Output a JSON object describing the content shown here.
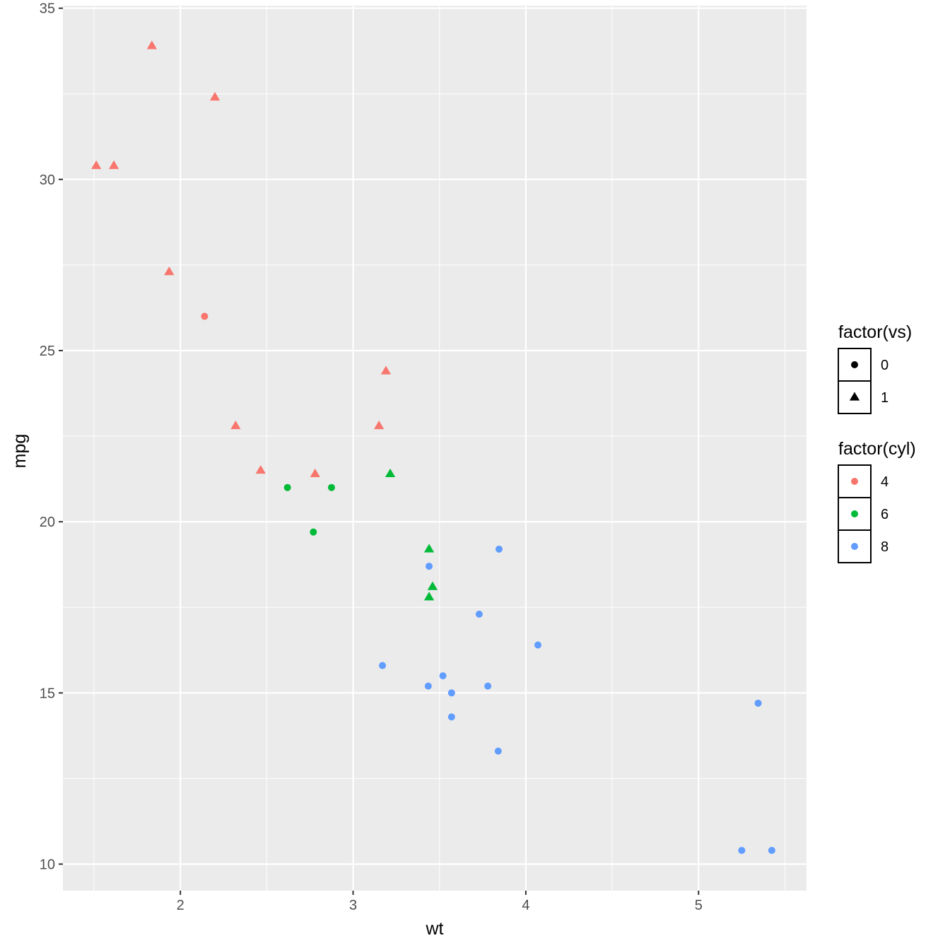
{
  "chart_data": {
    "type": "scatter",
    "xlabel": "wt",
    "ylabel": "mpg",
    "xlim": [
      1.32,
      5.625
    ],
    "ylim": [
      9.225,
      35.075
    ],
    "x_ticks": [
      2,
      3,
      4,
      5
    ],
    "y_ticks": [
      10,
      15,
      20,
      25,
      30,
      35
    ],
    "grid": true,
    "panel_background": "#ebebeb",
    "legend_position": "right",
    "legends": [
      {
        "title": "factor(vs)",
        "kind": "shape",
        "entries": [
          {
            "label": "0",
            "shape": "circle"
          },
          {
            "label": "1",
            "shape": "triangle"
          }
        ]
      },
      {
        "title": "factor(cyl)",
        "kind": "color",
        "entries": [
          {
            "label": "4",
            "color": "#f8766d"
          },
          {
            "label": "6",
            "color": "#00ba38"
          },
          {
            "label": "8",
            "color": "#619cff"
          }
        ]
      }
    ],
    "points": [
      {
        "x": 2.62,
        "y": 21.0,
        "cyl": "6",
        "vs": "0"
      },
      {
        "x": 2.875,
        "y": 21.0,
        "cyl": "6",
        "vs": "0"
      },
      {
        "x": 2.32,
        "y": 22.8,
        "cyl": "4",
        "vs": "1"
      },
      {
        "x": 3.215,
        "y": 21.4,
        "cyl": "6",
        "vs": "1"
      },
      {
        "x": 3.44,
        "y": 18.7,
        "cyl": "8",
        "vs": "0"
      },
      {
        "x": 3.46,
        "y": 18.1,
        "cyl": "6",
        "vs": "1"
      },
      {
        "x": 3.57,
        "y": 14.3,
        "cyl": "8",
        "vs": "0"
      },
      {
        "x": 3.19,
        "y": 24.4,
        "cyl": "4",
        "vs": "1"
      },
      {
        "x": 3.15,
        "y": 22.8,
        "cyl": "4",
        "vs": "1"
      },
      {
        "x": 3.44,
        "y": 19.2,
        "cyl": "6",
        "vs": "1"
      },
      {
        "x": 3.44,
        "y": 17.8,
        "cyl": "6",
        "vs": "1"
      },
      {
        "x": 4.07,
        "y": 16.4,
        "cyl": "8",
        "vs": "0"
      },
      {
        "x": 3.73,
        "y": 17.3,
        "cyl": "8",
        "vs": "0"
      },
      {
        "x": 3.78,
        "y": 15.2,
        "cyl": "8",
        "vs": "0"
      },
      {
        "x": 5.25,
        "y": 10.4,
        "cyl": "8",
        "vs": "0"
      },
      {
        "x": 5.424,
        "y": 10.4,
        "cyl": "8",
        "vs": "0"
      },
      {
        "x": 5.345,
        "y": 14.7,
        "cyl": "8",
        "vs": "0"
      },
      {
        "x": 2.2,
        "y": 32.4,
        "cyl": "4",
        "vs": "1"
      },
      {
        "x": 1.615,
        "y": 30.4,
        "cyl": "4",
        "vs": "1"
      },
      {
        "x": 1.835,
        "y": 33.9,
        "cyl": "4",
        "vs": "1"
      },
      {
        "x": 2.465,
        "y": 21.5,
        "cyl": "4",
        "vs": "1"
      },
      {
        "x": 3.52,
        "y": 15.5,
        "cyl": "8",
        "vs": "0"
      },
      {
        "x": 3.435,
        "y": 15.2,
        "cyl": "8",
        "vs": "0"
      },
      {
        "x": 3.84,
        "y": 13.3,
        "cyl": "8",
        "vs": "0"
      },
      {
        "x": 3.845,
        "y": 19.2,
        "cyl": "8",
        "vs": "0"
      },
      {
        "x": 1.935,
        "y": 27.3,
        "cyl": "4",
        "vs": "1"
      },
      {
        "x": 2.14,
        "y": 26.0,
        "cyl": "4",
        "vs": "0"
      },
      {
        "x": 1.513,
        "y": 30.4,
        "cyl": "4",
        "vs": "1"
      },
      {
        "x": 3.17,
        "y": 15.8,
        "cyl": "8",
        "vs": "0"
      },
      {
        "x": 2.77,
        "y": 19.7,
        "cyl": "6",
        "vs": "0"
      },
      {
        "x": 3.57,
        "y": 15.0,
        "cyl": "8",
        "vs": "0"
      },
      {
        "x": 2.78,
        "y": 21.4,
        "cyl": "4",
        "vs": "1"
      }
    ]
  }
}
